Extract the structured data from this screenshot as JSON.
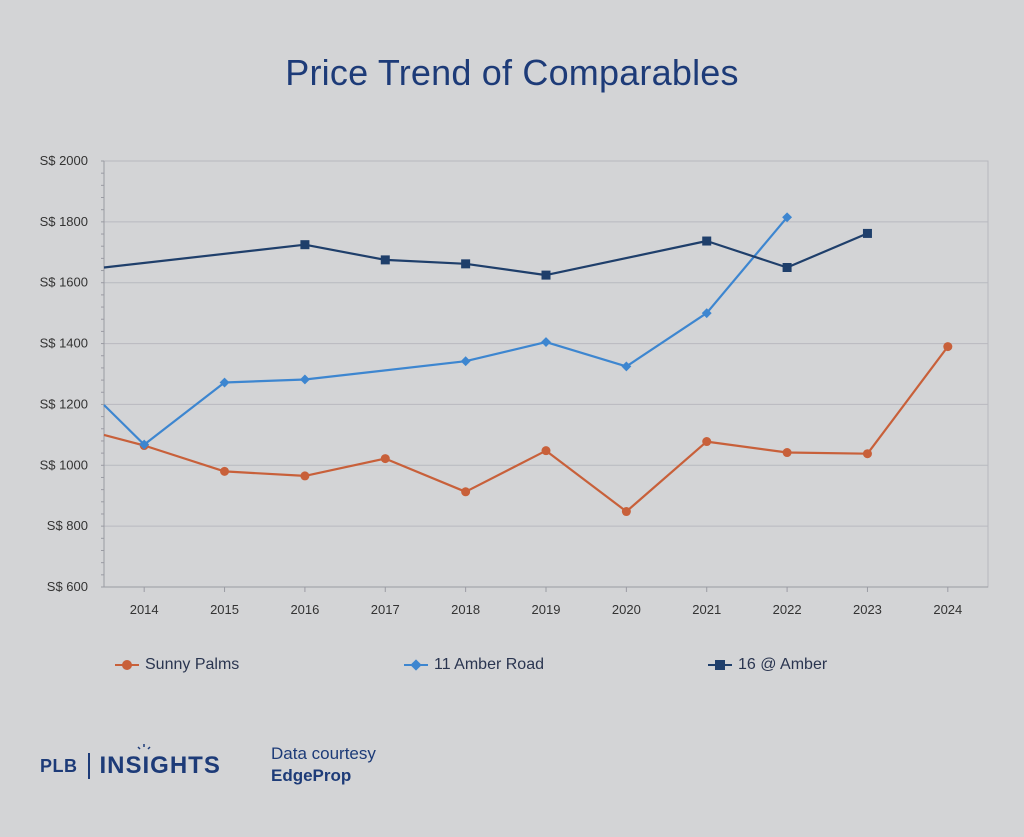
{
  "chart_data": {
    "type": "line",
    "title": "Price Trend of Comparables",
    "x": [
      2013.5,
      2014,
      2015,
      2016,
      2017,
      2018,
      2019,
      2020,
      2021,
      2022,
      2023,
      2024
    ],
    "x_tick_labels": [
      "2014",
      "2015",
      "2016",
      "2017",
      "2018",
      "2019",
      "2020",
      "2021",
      "2022",
      "2023",
      "2024"
    ],
    "xlim": [
      2013.5,
      2024.5
    ],
    "ylim": [
      600,
      2000
    ],
    "y_ticks": [
      600,
      800,
      1000,
      1200,
      1400,
      1600,
      1800,
      2000
    ],
    "y_tick_labels": [
      "S$ 600",
      "S$ 800",
      "S$ 1000",
      "S$ 1200",
      "S$ 1400",
      "S$ 1600",
      "S$ 1800",
      "S$ 2000"
    ],
    "grid": true,
    "legend_position": "bottom",
    "series": [
      {
        "name": "Sunny Palms",
        "color": "#c8603a",
        "marker": "circle",
        "values": [
          1100,
          1065,
          980,
          965,
          1022,
          913,
          1048,
          848,
          1078,
          1042,
          1038,
          1390
        ]
      },
      {
        "name": "11 Amber Road",
        "color": "#3d86d0",
        "marker": "diamond",
        "values": [
          1198,
          1068,
          1272,
          1282,
          null,
          1342,
          1405,
          1325,
          1500,
          1815,
          null,
          null
        ]
      },
      {
        "name": "16 @ Amber",
        "color": "#1f3f6b",
        "marker": "square",
        "values": [
          1650,
          null,
          null,
          1725,
          1675,
          1662,
          1625,
          null,
          1737,
          1650,
          1762,
          null
        ]
      }
    ]
  },
  "brand": {
    "plb": "PLB",
    "insights": "INSIGHTS"
  },
  "credit": {
    "line1": "Data courtesy",
    "source": "EdgeProp"
  }
}
